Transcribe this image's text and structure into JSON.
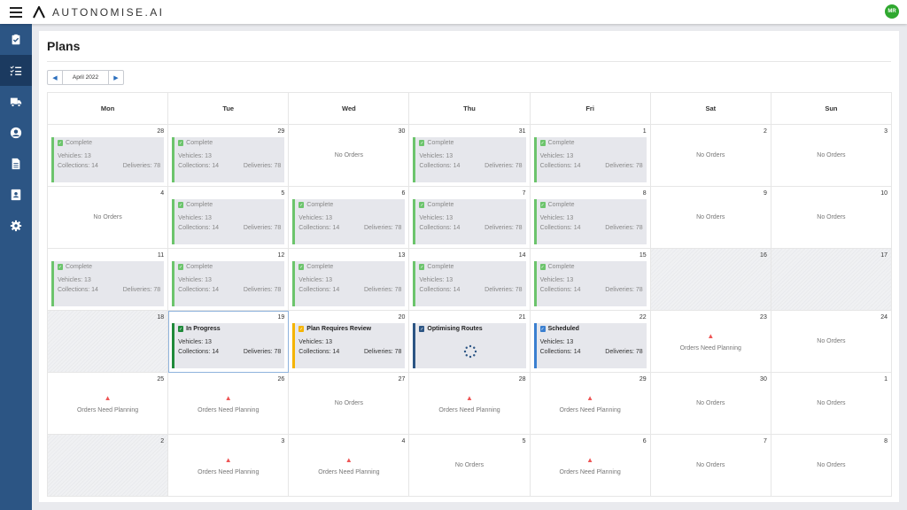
{
  "app": {
    "brand": "AUTONOMISE.AI",
    "user_initials": "MR"
  },
  "sidebar": {
    "items": [
      {
        "name": "plans-check",
        "icon": "clipboard-check-icon"
      },
      {
        "name": "tasks",
        "icon": "list-check-icon",
        "active": true
      },
      {
        "name": "vehicles",
        "icon": "truck-icon"
      },
      {
        "name": "users",
        "icon": "user-circle-icon"
      },
      {
        "name": "documents",
        "icon": "document-icon"
      },
      {
        "name": "contacts",
        "icon": "contact-card-icon"
      },
      {
        "name": "settings",
        "icon": "gear-icon"
      }
    ]
  },
  "page": {
    "title": "Plans",
    "month_label": "April 2022"
  },
  "labels": {
    "no_orders": "No Orders",
    "needs_planning": "Orders Need Planning",
    "vehicles": "Vehicles: ",
    "collections": "Collections: ",
    "deliveries": "Deliveries: "
  },
  "colors": {
    "complete": "#6cc46c",
    "in_progress": "#1f8a3a",
    "review": "#f5b400",
    "optimising": "#2c5584",
    "scheduled": "#3a7fd0"
  },
  "weekdays": [
    "Mon",
    "Tue",
    "Wed",
    "Thu",
    "Fri",
    "Sat",
    "Sun"
  ],
  "weeks": [
    [
      {
        "day": "28",
        "type": "plan",
        "status": "Complete",
        "v": 13,
        "c": 14,
        "d": 78
      },
      {
        "day": "29",
        "type": "plan",
        "status": "Complete",
        "v": 13,
        "c": 14,
        "d": 78
      },
      {
        "day": "30",
        "type": "none"
      },
      {
        "day": "31",
        "type": "plan",
        "status": "Complete",
        "v": 13,
        "c": 14,
        "d": 78
      },
      {
        "day": "1",
        "type": "plan",
        "status": "Complete",
        "v": 13,
        "c": 14,
        "d": 78
      },
      {
        "day": "2",
        "type": "none"
      },
      {
        "day": "3",
        "type": "none"
      }
    ],
    [
      {
        "day": "4",
        "type": "none"
      },
      {
        "day": "5",
        "type": "plan",
        "status": "Complete",
        "v": 13,
        "c": 14,
        "d": 78
      },
      {
        "day": "6",
        "type": "plan",
        "status": "Complete",
        "v": 13,
        "c": 14,
        "d": 78
      },
      {
        "day": "7",
        "type": "plan",
        "status": "Complete",
        "v": 13,
        "c": 14,
        "d": 78
      },
      {
        "day": "8",
        "type": "plan",
        "status": "Complete",
        "v": 13,
        "c": 14,
        "d": 78
      },
      {
        "day": "9",
        "type": "none"
      },
      {
        "day": "10",
        "type": "none"
      }
    ],
    [
      {
        "day": "11",
        "type": "plan",
        "status": "Complete",
        "v": 13,
        "c": 14,
        "d": 78
      },
      {
        "day": "12",
        "type": "plan",
        "status": "Complete",
        "v": 13,
        "c": 14,
        "d": 78
      },
      {
        "day": "13",
        "type": "plan",
        "status": "Complete",
        "v": 13,
        "c": 14,
        "d": 78
      },
      {
        "day": "14",
        "type": "plan",
        "status": "Complete",
        "v": 13,
        "c": 14,
        "d": 78
      },
      {
        "day": "15",
        "type": "plan",
        "status": "Complete",
        "v": 13,
        "c": 14,
        "d": 78
      },
      {
        "day": "16",
        "type": "past"
      },
      {
        "day": "17",
        "type": "past"
      }
    ],
    [
      {
        "day": "18",
        "type": "past"
      },
      {
        "day": "19",
        "type": "plan",
        "status": "In Progress",
        "color": "in_progress",
        "v": 13,
        "c": 14,
        "d": 78,
        "selected": true
      },
      {
        "day": "20",
        "type": "plan",
        "status": "Plan Requires Review",
        "color": "review",
        "v": 13,
        "c": 14,
        "d": 78
      },
      {
        "day": "21",
        "type": "optimising",
        "status": "Optimising Routes",
        "color": "optimising"
      },
      {
        "day": "22",
        "type": "plan",
        "status": "Scheduled",
        "color": "scheduled",
        "v": 13,
        "c": 14,
        "d": 78
      },
      {
        "day": "23",
        "type": "needs"
      },
      {
        "day": "24",
        "type": "none"
      }
    ],
    [
      {
        "day": "25",
        "type": "needs"
      },
      {
        "day": "26",
        "type": "needs"
      },
      {
        "day": "27",
        "type": "none"
      },
      {
        "day": "28",
        "type": "needs"
      },
      {
        "day": "29",
        "type": "needs"
      },
      {
        "day": "30",
        "type": "none"
      },
      {
        "day": "1",
        "type": "none"
      }
    ],
    [
      {
        "day": "2",
        "type": "past"
      },
      {
        "day": "3",
        "type": "needs"
      },
      {
        "day": "4",
        "type": "needs"
      },
      {
        "day": "5",
        "type": "none"
      },
      {
        "day": "6",
        "type": "needs"
      },
      {
        "day": "7",
        "type": "none"
      },
      {
        "day": "8",
        "type": "none"
      }
    ]
  ]
}
